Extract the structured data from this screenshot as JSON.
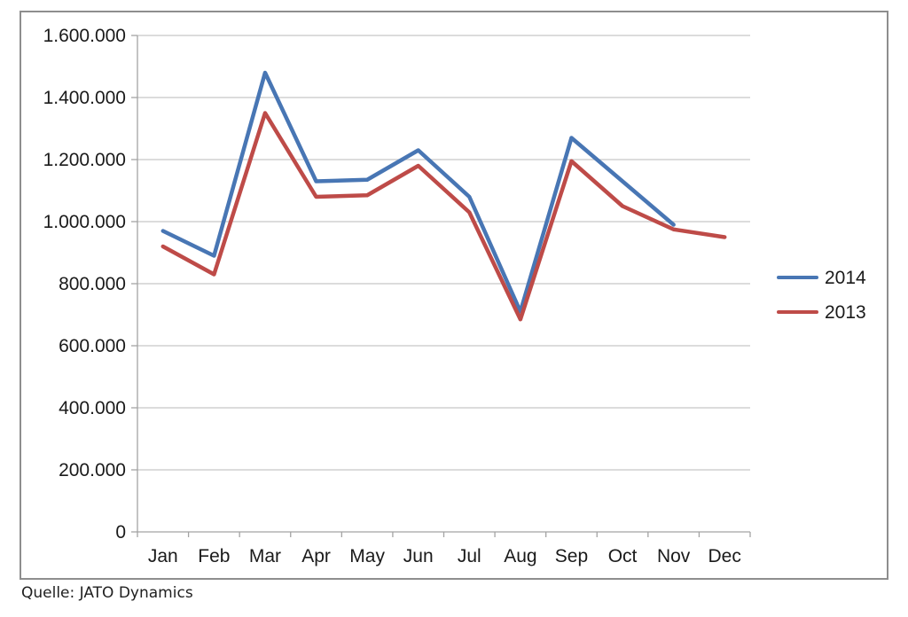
{
  "source_note": "Quelle: JATO Dynamics",
  "chart_data": {
    "type": "line",
    "title": "",
    "xlabel": "",
    "ylabel": "",
    "categories": [
      "Jan",
      "Feb",
      "Mar",
      "Apr",
      "May",
      "Jun",
      "Jul",
      "Aug",
      "Sep",
      "Oct",
      "Nov",
      "Dec"
    ],
    "series": [
      {
        "name": "2014",
        "color": "#4876B4",
        "values": [
          970000,
          890000,
          1480000,
          1130000,
          1135000,
          1230000,
          1080000,
          710000,
          1270000,
          1130000,
          990000,
          null
        ]
      },
      {
        "name": "2013",
        "color": "#BE4B48",
        "values": [
          920000,
          830000,
          1350000,
          1080000,
          1085000,
          1180000,
          1030000,
          685000,
          1195000,
          1050000,
          975000,
          950000
        ]
      }
    ],
    "y_axis": {
      "min": 0,
      "max": 1600000,
      "tick_step": 200000,
      "tick_labels": [
        "0",
        "200.000",
        "400.000",
        "600.000",
        "800.000",
        "1.000.000",
        "1.200.000",
        "1.400.000",
        "1.600.000"
      ]
    },
    "grid": true,
    "legend_position": "right",
    "colors": {
      "gridline": "#c8c8c8",
      "axis": "#a3a3a3",
      "frame_border": "#8e8e8e",
      "label_text": "#1a1a1a"
    }
  }
}
